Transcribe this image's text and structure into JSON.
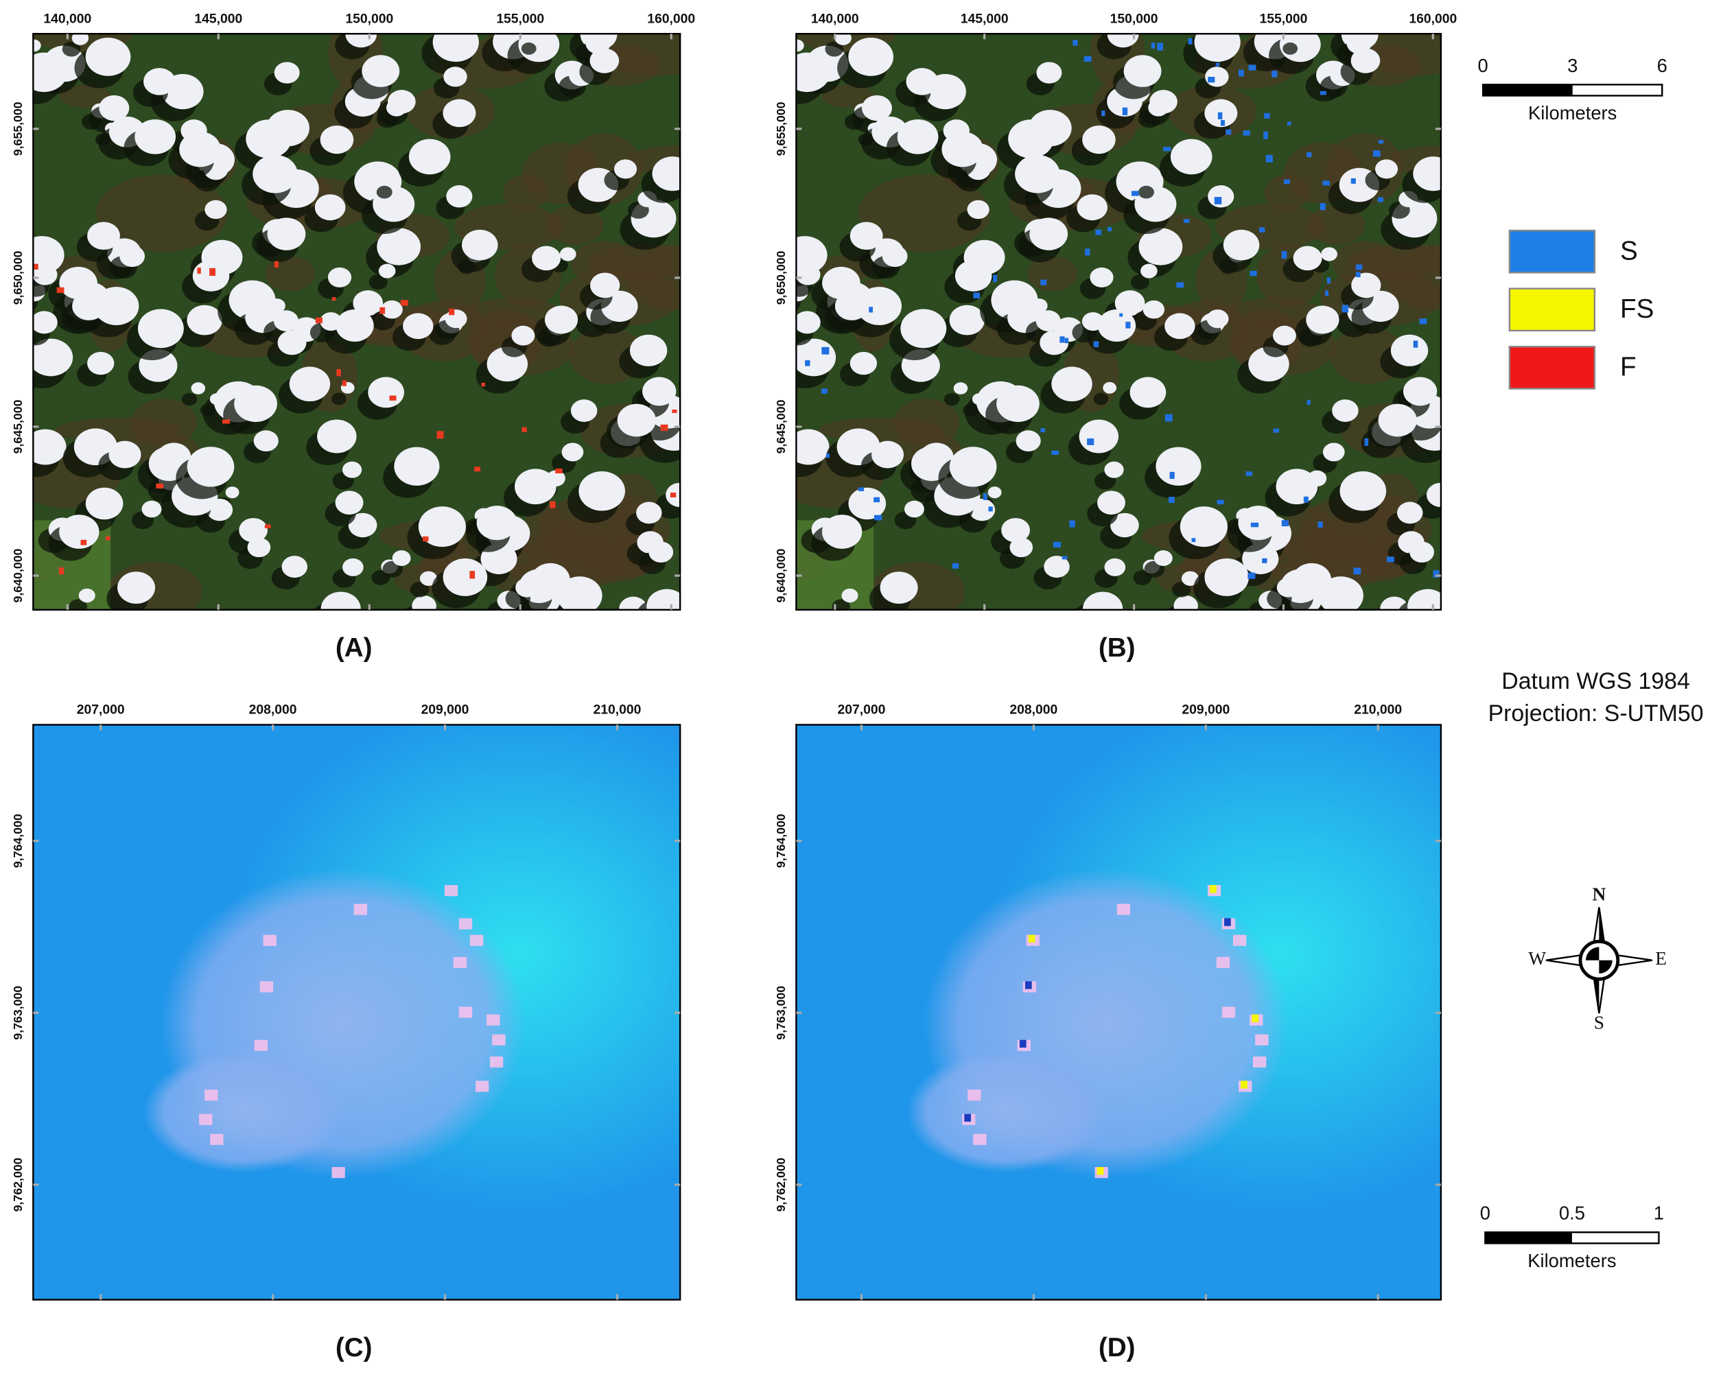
{
  "panels": [
    {
      "label": "(A)",
      "x_ticks": [
        "140,000",
        "145,000",
        "150,000",
        "155,000",
        "160,000"
      ],
      "y_ticks": [
        "9,655,000",
        "9,650,000",
        "9,645,000",
        "9,640,000"
      ]
    },
    {
      "label": "(B)",
      "x_ticks": [
        "140,000",
        "145,000",
        "150,000",
        "155,000",
        "160,000"
      ],
      "y_ticks": [
        "9,655,000",
        "9,650,000",
        "9,645,000",
        "9,640,000"
      ]
    },
    {
      "label": "(C)",
      "x_ticks": [
        "207,000",
        "208,000",
        "209,000",
        "210,000"
      ],
      "y_ticks": [
        "9,764,000",
        "9,763,000",
        "9,762,000"
      ]
    },
    {
      "label": "(D)",
      "x_ticks": [
        "207,000",
        "208,000",
        "209,000",
        "210,000"
      ],
      "y_ticks": [
        "9,764,000",
        "9,763,000",
        "9,762,000"
      ]
    }
  ],
  "legend": [
    {
      "label": "S",
      "color": "#1f7fe8"
    },
    {
      "label": "FS",
      "color": "#f5f500"
    },
    {
      "label": "F",
      "color": "#f01818"
    }
  ],
  "scale_bars": [
    {
      "ticks": [
        "0",
        "3",
        "6"
      ],
      "unit": "Kilometers"
    },
    {
      "ticks": [
        "0",
        "0.5",
        "1"
      ],
      "unit": "Kilometers"
    }
  ],
  "datum": "Datum WGS 1984",
  "projection": "Projection: S-UTM50",
  "compass": {
    "north": "N",
    "south": "S",
    "west": "W",
    "east": "E"
  }
}
